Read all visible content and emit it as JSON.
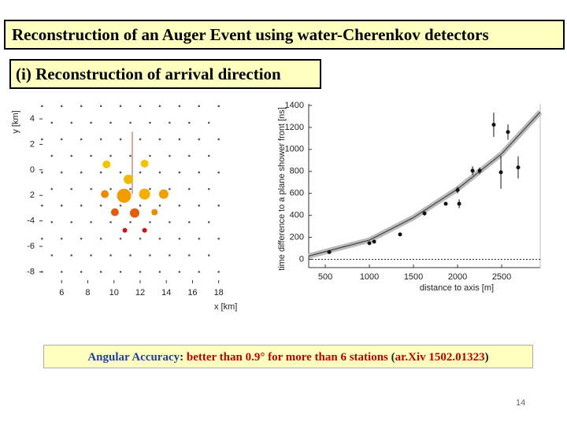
{
  "title": "Reconstruction of an Auger Event using water-Cherenkov detectors",
  "subtitle": "(i) Reconstruction of arrival direction",
  "footnote": {
    "parts": [
      {
        "text": "Angular Accuracy",
        "color": "#1f3f9f"
      },
      {
        "text": ": ",
        "color": "#222222"
      },
      {
        "text": "better than 0.9° for more than 6 stations",
        "color": "#c00000"
      },
      {
        "text": " (",
        "color": "#222222"
      },
      {
        "text": "ar.Xiv 1502.01323",
        "color": "#c00000"
      },
      {
        "text": ")",
        "color": "#222222"
      }
    ]
  },
  "page_number": "14",
  "chart_data": [
    {
      "type": "scatter",
      "xlabel": "x [km]",
      "ylabel": "y [km]",
      "xlim": [
        4.3,
        18.5
      ],
      "ylim": [
        -8.9,
        5.3
      ],
      "xticks": [
        6,
        8,
        10,
        12,
        14,
        16,
        18
      ],
      "yticks": [
        4,
        2,
        0,
        {
          "value": -2,
          "label": "2"
        },
        -4,
        -6,
        -8
      ],
      "shower_axis": {
        "x": [
          11.4,
          11.4
        ],
        "values": [
          3.0,
          -1.9
        ]
      },
      "series": [
        {
          "color": "#555555",
          "x": [
            4.5,
            6,
            7.5,
            9,
            10.5,
            12,
            13.5,
            15,
            16.5,
            18,
            5.25,
            6.75,
            8.25,
            9.75,
            11.25,
            12.75,
            14.25,
            15.75,
            17.25,
            4.5,
            6,
            7.5,
            9,
            10.5,
            12,
            13.5,
            15,
            16.5,
            18,
            5.25,
            6.75,
            8.25,
            9.75,
            11.25,
            12.75,
            14.25,
            15.75,
            17.25,
            4.5,
            6,
            7.5,
            9,
            10.5,
            12,
            13.5,
            15,
            16.5,
            18,
            5.25,
            6.75,
            8.25,
            9.75,
            11.25,
            12.75,
            14.25,
            15.75,
            17.25,
            4.5,
            6,
            7.5,
            9,
            10.5,
            12,
            13.5,
            15,
            16.5,
            18,
            5.25,
            6.75,
            8.25,
            9.75,
            11.25,
            12.75,
            14.25,
            15.75,
            17.25,
            4.5,
            6,
            7.5,
            9,
            10.5,
            12,
            13.5,
            15,
            16.5,
            18,
            5.25,
            6.75,
            8.25,
            9.75,
            11.25,
            12.75,
            14.25,
            15.75,
            17.25,
            4.5,
            6,
            7.5,
            9,
            10.5,
            12,
            13.5,
            15,
            16.5,
            18
          ],
          "values": [
            5,
            5,
            5,
            5,
            5,
            5,
            5,
            5,
            5,
            5,
            3.7,
            3.7,
            3.7,
            3.7,
            3.7,
            3.7,
            3.7,
            3.7,
            3.7,
            2.4,
            2.4,
            2.4,
            2.4,
            2.4,
            2.4,
            2.4,
            2.4,
            2.4,
            2.4,
            1.1,
            1.1,
            1.1,
            1.1,
            1.1,
            1.1,
            1.1,
            1.1,
            1.1,
            -0.2,
            -0.2,
            -0.2,
            -0.2,
            -0.2,
            -0.2,
            -0.2,
            -0.2,
            -0.2,
            -0.2,
            -1.5,
            -1.5,
            -1.5,
            -1.5,
            -1.5,
            -1.5,
            -1.5,
            -1.5,
            -1.5,
            -2.8,
            -2.8,
            -2.8,
            -2.8,
            -2.8,
            -2.8,
            -2.8,
            -2.8,
            -2.8,
            -2.8,
            -4.1,
            -4.1,
            -4.1,
            -4.1,
            -4.1,
            -4.1,
            -4.1,
            -4.1,
            -4.1,
            -5.4,
            -5.4,
            -5.4,
            -5.4,
            -5.4,
            -5.4,
            -5.4,
            -5.4,
            -5.4,
            -5.4,
            -6.7,
            -6.7,
            -6.7,
            -6.7,
            -6.7,
            -6.7,
            -6.7,
            -6.7,
            -6.7,
            -8,
            -8,
            -8,
            -8,
            -8,
            -8,
            -8,
            -8,
            -8,
            -8
          ]
        },
        {
          "x": [
            9.43,
            12.34,
            11.1,
            9.3,
            10.77,
            12.34,
            13.8,
            10.07,
            11.58,
            13.1,
            10.83,
            12.34
          ],
          "values": [
            0.43,
            0.49,
            -0.74,
            -1.9,
            -2.03,
            -1.9,
            -1.9,
            -3.32,
            -3.38,
            -3.32,
            -4.74,
            -4.74
          ],
          "sizes": [
            5,
            5,
            6,
            5,
            9,
            7,
            6,
            5,
            6,
            4,
            3,
            3
          ],
          "colors": [
            "#f5c400",
            "#f5c400",
            "#f2b800",
            "#ee8a00",
            "#f29c00",
            "#f4b000",
            "#f0a000",
            "#e05a10",
            "#e06010",
            "#e88a00",
            "#d01010",
            "#d01010"
          ]
        }
      ]
    },
    {
      "type": "scatter",
      "xlabel": "distance to axis [m]",
      "ylabel": "time difference to a plane shower front [ns]",
      "xlim": [
        312,
        2937
      ],
      "ylim": [
        -75,
        1414
      ],
      "xticks": [
        500,
        1000,
        1500,
        2000,
        2500
      ],
      "yticks": [
        0,
        200,
        400,
        600,
        800,
        1000,
        1200,
        1400
      ],
      "zero_line": true,
      "fit": {
        "x": [
          312,
          500,
          1000,
          1500,
          2000,
          2500,
          2937
        ],
        "values": [
          30,
          70,
          175,
          380,
          640,
          960,
          1340
        ]
      },
      "series": [
        {
          "color": "#111111",
          "x": [
            545,
            1000,
            1054,
            1348,
            1625,
            1866,
            2000,
            2018,
            2170,
            2250,
            2410,
            2491,
            2571,
            2687
          ],
          "values": [
            66,
            147,
            161,
            227,
            418,
            506,
            630,
            506,
            806,
            806,
            1224,
            792,
            1158,
            836
          ],
          "errors": [
            5,
            5,
            5,
            8,
            20,
            15,
            30,
            40,
            40,
            30,
            110,
            150,
            70,
            100
          ]
        }
      ]
    }
  ]
}
